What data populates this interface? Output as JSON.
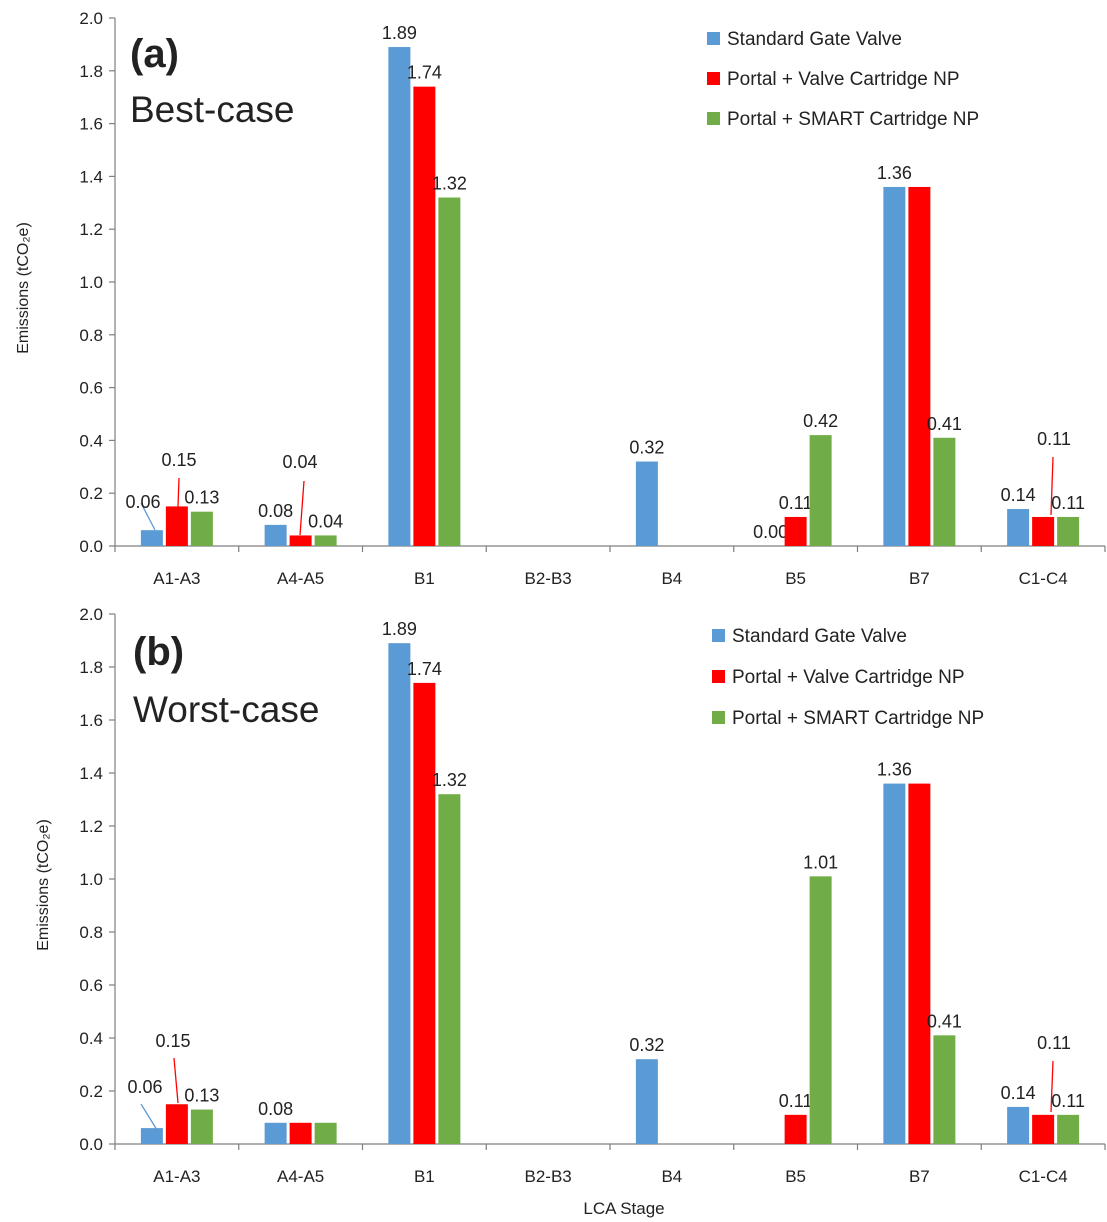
{
  "colors": {
    "standard": "#5B9BD5",
    "valve": "#FF0000",
    "smart": "#70AD47",
    "axis": "#7F7F7F",
    "leader_blue": "#5B9BD5",
    "leader_red": "#FF0000"
  },
  "chart_data": [
    {
      "type": "bar",
      "panel_tag": "(a)",
      "panel_label": "Best-case",
      "xlabel": "",
      "ylabel": "Emissions (tCO₂e)",
      "ylim": [
        0,
        2.0
      ],
      "yticks": [
        "0.0",
        "0.2",
        "0.4",
        "0.6",
        "0.8",
        "1.0",
        "1.2",
        "1.4",
        "1.6",
        "1.8",
        "2.0"
      ],
      "grid": false,
      "legend_position": "top-right",
      "categories": [
        "A1-A3",
        "A4-A5",
        "B1",
        "B2-B3",
        "B4",
        "B5",
        "B7",
        "C1-C4"
      ],
      "series": [
        {
          "name": "Standard Gate Valve",
          "color_key": "standard",
          "values": [
            0.06,
            0.08,
            1.89,
            0,
            0.32,
            0,
            1.36,
            0.14
          ],
          "labels": [
            "0.06",
            "0.08",
            "1.89",
            "",
            "0.32",
            "0.00",
            "1.36",
            "0.14"
          ]
        },
        {
          "name": "Portal + Valve Cartridge NP",
          "color_key": "valve",
          "values": [
            0.15,
            0.04,
            1.74,
            0,
            0,
            0.11,
            1.36,
            0.11
          ],
          "labels": [
            "0.15",
            "0.04",
            "1.74",
            "",
            "",
            "0.11",
            "",
            "0.11"
          ]
        },
        {
          "name": "Portal + SMART Cartridge NP",
          "color_key": "smart",
          "values": [
            0.13,
            0.04,
            1.32,
            0,
            0,
            0.42,
            0.41,
            0.11
          ],
          "labels": [
            "0.13",
            "0.04",
            "1.32",
            "",
            "",
            "0.42",
            "0.41",
            "0.11"
          ]
        }
      ]
    },
    {
      "type": "bar",
      "panel_tag": "(b)",
      "panel_label": "Worst-case",
      "xlabel": "LCA Stage",
      "ylabel": "Emissions (tCO₂e)",
      "ylim": [
        0,
        2.0
      ],
      "yticks": [
        "0.0",
        "0.2",
        "0.4",
        "0.6",
        "0.8",
        "1.0",
        "1.2",
        "1.4",
        "1.6",
        "1.8",
        "2.0"
      ],
      "grid": false,
      "legend_position": "top-right",
      "categories": [
        "A1-A3",
        "A4-A5",
        "B1",
        "B2-B3",
        "B4",
        "B5",
        "B7",
        "C1-C4"
      ],
      "series": [
        {
          "name": "Standard Gate Valve",
          "color_key": "standard",
          "values": [
            0.06,
            0.08,
            1.89,
            0,
            0.32,
            0,
            1.36,
            0.14
          ],
          "labels": [
            "0.06",
            "0.08",
            "1.89",
            "",
            "0.32",
            "",
            "1.36",
            "0.14"
          ]
        },
        {
          "name": "Portal + Valve Cartridge NP",
          "color_key": "valve",
          "values": [
            0.15,
            0.08,
            1.74,
            0,
            0,
            0.11,
            1.36,
            0.11
          ],
          "labels": [
            "0.15",
            "",
            "1.74",
            "",
            "",
            "0.11",
            "",
            "0.11"
          ]
        },
        {
          "name": "Portal + SMART Cartridge NP",
          "color_key": "smart",
          "values": [
            0.13,
            0.08,
            1.32,
            0,
            0,
            1.01,
            0.41,
            0.11
          ],
          "labels": [
            "0.13",
            "",
            "1.32",
            "",
            "",
            "1.01",
            "0.41",
            "0.11"
          ]
        }
      ]
    }
  ]
}
